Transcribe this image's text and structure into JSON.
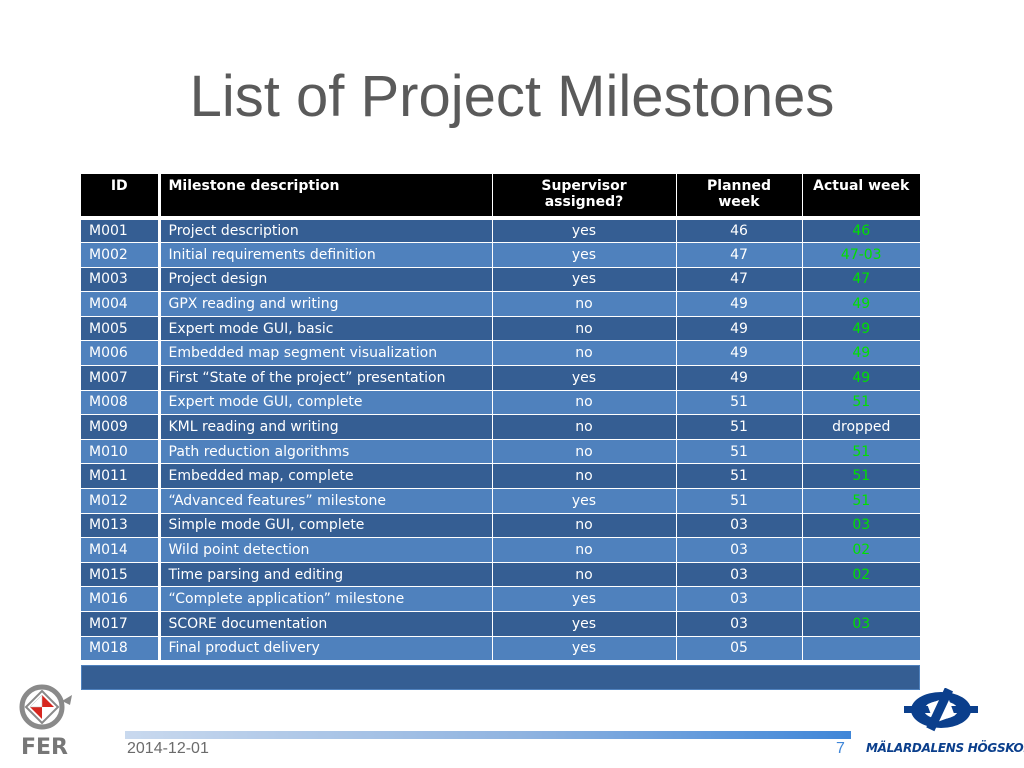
{
  "slide": {
    "title": "List of Project Milestones"
  },
  "table": {
    "headers": [
      "ID",
      "Milestone description",
      "Supervisor assigned?",
      "Planned week",
      "Actual week"
    ],
    "rows": [
      {
        "id": "M001",
        "desc": "Project description",
        "sup": "yes",
        "planned": "46",
        "actual": "46"
      },
      {
        "id": "M002",
        "desc": "Initial requirements definition",
        "sup": "yes",
        "planned": "47",
        "actual": "47-03"
      },
      {
        "id": "M003",
        "desc": "Project design",
        "sup": "yes",
        "planned": "47",
        "actual": "47"
      },
      {
        "id": "M004",
        "desc": "GPX reading and writing",
        "sup": "no",
        "planned": "49",
        "actual": "49"
      },
      {
        "id": "M005",
        "desc": "Expert mode GUI, basic",
        "sup": "no",
        "planned": "49",
        "actual": "49"
      },
      {
        "id": "M006",
        "desc": "Embedded map segment visualization",
        "sup": "no",
        "planned": "49",
        "actual": "49"
      },
      {
        "id": "M007",
        "desc": "First “State of the project” presentation",
        "sup": "yes",
        "planned": "49",
        "actual": "49"
      },
      {
        "id": "M008",
        "desc": "Expert mode GUI, complete",
        "sup": "no",
        "planned": "51",
        "actual": "51"
      },
      {
        "id": "M009",
        "desc": "KML reading and writing",
        "sup": "no",
        "planned": "51",
        "actual": "dropped"
      },
      {
        "id": "M010",
        "desc": "Path reduction algorithms",
        "sup": "no",
        "planned": "51",
        "actual": "51"
      },
      {
        "id": "M011",
        "desc": "Embedded map, complete",
        "sup": "no",
        "planned": "51",
        "actual": "51"
      },
      {
        "id": "M012",
        "desc": "“Advanced features” milestone",
        "sup": "yes",
        "planned": "51",
        "actual": "51"
      },
      {
        "id": "M013",
        "desc": "Simple mode GUI, complete",
        "sup": "no",
        "planned": "03",
        "actual": "03"
      },
      {
        "id": "M014",
        "desc": "Wild point detection",
        "sup": "no",
        "planned": "03",
        "actual": "02"
      },
      {
        "id": "M015",
        "desc": "Time parsing and editing",
        "sup": "no",
        "planned": "03",
        "actual": "02"
      },
      {
        "id": "M016",
        "desc": "“Complete application” milestone",
        "sup": "yes",
        "planned": "03",
        "actual": ""
      },
      {
        "id": "M017",
        "desc": "SCORE documentation",
        "sup": "yes",
        "planned": "03",
        "actual": "03"
      },
      {
        "id": "M018",
        "desc": "Final product delivery",
        "sup": "yes",
        "planned": "05",
        "actual": ""
      }
    ]
  },
  "footer": {
    "date": "2014-12-01",
    "page_number": "7",
    "logo_left_text": "FER",
    "logo_right_text": "MÄLARDALENS HÖGSKOLA"
  },
  "colors": {
    "header_bg": "#000000",
    "row_dark": "#355e93",
    "row_light": "#4f81bd",
    "actual_green": "#00e000",
    "title_gray": "#5a5a5a",
    "accent_blue": "#3f86d8"
  }
}
